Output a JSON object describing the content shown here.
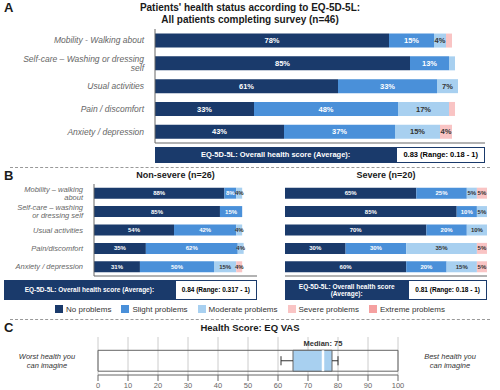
{
  "chart_data": [
    {
      "type": "bar",
      "orientation": "horizontal",
      "stacked": true,
      "panel": "A",
      "title": "Patients' health status according to EQ-5D-5L:\nAll patients completing survey (n=46)",
      "categories": [
        "Mobility - Walking about",
        "Self-care – Washing or dressing self",
        "Usual activities",
        "Pain / discomfort",
        "Anxiety / depression"
      ],
      "series": [
        {
          "name": "No problems",
          "color": "#1a3a6b",
          "values": [
            78,
            85,
            61,
            33,
            43
          ],
          "value_labels": [
            "78%",
            "85%",
            "61%",
            "33%",
            "43%"
          ]
        },
        {
          "name": "Slight problems",
          "color": "#4a90d9",
          "values": [
            15,
            13,
            33,
            48,
            37
          ],
          "value_labels": [
            "15%",
            "13%",
            "33%",
            "48%",
            "37%"
          ]
        },
        {
          "name": "Moderate problems",
          "color": "#a8d0f0",
          "values": [
            4,
            2,
            7,
            17,
            15
          ],
          "value_labels": [
            "4%",
            null,
            "7%",
            "17%",
            "15%"
          ]
        },
        {
          "name": "Severe problems",
          "color": "#f9c4c4",
          "values": [
            2,
            0,
            0,
            2,
            4
          ],
          "value_labels": [
            null,
            null,
            null,
            null,
            "4%"
          ]
        },
        {
          "name": "Extreme problems",
          "color": "#f5a0a0",
          "values": [
            0,
            0,
            0,
            0,
            0
          ],
          "value_labels": [
            null,
            null,
            null,
            null,
            null
          ]
        }
      ],
      "xlim": [
        0,
        110
      ],
      "data_labels": true,
      "tick_labels": "y",
      "annotations": [
        "EQ-5D-5L: Overall health score (Average):",
        "0.83 (Range: 0.18 - 1)"
      ]
    },
    {
      "type": "bar",
      "orientation": "horizontal",
      "stacked": true,
      "panel": "B",
      "title": "Non-severe (n=26)",
      "categories": [
        "Mobility – walking about",
        "Self-care – washing or dressing self",
        "Usual activities",
        "Pain/discomfort",
        "Anxiety / depression"
      ],
      "series": [
        {
          "name": "No problems",
          "color": "#1a3a6b",
          "values": [
            88,
            85,
            54,
            35,
            31
          ],
          "value_labels": [
            "88%",
            "85%",
            "54%",
            "35%",
            "31%"
          ]
        },
        {
          "name": "Slight problems",
          "color": "#4a90d9",
          "values": [
            8,
            15,
            42,
            62,
            50
          ],
          "value_labels": [
            "8%",
            "15%",
            "42%",
            "62%",
            "50%"
          ]
        },
        {
          "name": "Moderate problems",
          "color": "#a8d0f0",
          "values": [
            4,
            0,
            4,
            4,
            15
          ],
          "value_labels": [
            "4%",
            null,
            "4%",
            "4%",
            "15%"
          ]
        },
        {
          "name": "Severe problems",
          "color": "#f9c4c4",
          "values": [
            0,
            0,
            0,
            0,
            4
          ],
          "value_labels": [
            null,
            null,
            null,
            null,
            "4%"
          ]
        },
        {
          "name": "Extreme problems",
          "color": "#f5a0a0",
          "values": [
            0,
            0,
            0,
            0,
            0
          ],
          "value_labels": [
            null,
            null,
            null,
            null,
            null
          ]
        }
      ],
      "xlim": [
        0,
        110
      ],
      "data_labels": true,
      "tick_labels": "y",
      "legend": "bottom",
      "annotations": [
        "EQ-5D-5L: Overall health score (Average):",
        "0.84 (Range: 0.317 - 1)"
      ]
    },
    {
      "type": "bar",
      "orientation": "horizontal",
      "stacked": true,
      "title": "Severe (n=20)",
      "categories": [
        "Mobility – walking about",
        "Self-care – washing or dressing self",
        "Usual activities",
        "Pain/discomfort",
        "Anxiety / depression"
      ],
      "series": [
        {
          "name": "No problems",
          "color": "#1a3a6b",
          "values": [
            65,
            85,
            70,
            30,
            60
          ],
          "value_labels": [
            "65%",
            "85%",
            "70%",
            "30%",
            "60%"
          ]
        },
        {
          "name": "Slight problems",
          "color": "#4a90d9",
          "values": [
            25,
            10,
            20,
            30,
            20
          ],
          "value_labels": [
            "25%",
            "10%",
            "20%",
            "30%",
            "20%"
          ]
        },
        {
          "name": "Moderate problems",
          "color": "#a8d0f0",
          "values": [
            5,
            5,
            10,
            35,
            15
          ],
          "value_labels": [
            "5%",
            "5%",
            "10%",
            "35%",
            "15%"
          ]
        },
        {
          "name": "Severe problems",
          "color": "#f9c4c4",
          "values": [
            5,
            0,
            0,
            5,
            5
          ],
          "value_labels": [
            "5%",
            null,
            null,
            "5%",
            "5%"
          ]
        },
        {
          "name": "Extreme problems",
          "color": "#f5a0a0",
          "values": [
            0,
            0,
            0,
            0,
            0
          ],
          "value_labels": [
            null,
            null,
            null,
            null,
            null
          ]
        }
      ],
      "xlim": [
        0,
        100
      ],
      "data_labels": true,
      "tick_labels": false,
      "annotations": [
        "EQ-5D-5L: Overall health score (Average):",
        "0.81 (Range: 0.18 - 1)"
      ]
    },
    {
      "type": "box",
      "panel": "C",
      "title": "Health Score: EQ VAS",
      "min": 61,
      "q1": 65,
      "median": 75,
      "q3": 78,
      "max": 80,
      "median_label": "Median: 75",
      "color": "#a8d0f0",
      "xlim": [
        0,
        100
      ],
      "xticks": [
        0,
        10,
        20,
        30,
        40,
        50,
        60,
        70,
        80,
        90,
        100
      ],
      "grid": true,
      "tick_labels": "x",
      "annotations": [
        "Worst health you\ncan imagine",
        "Best health you\ncan imagine"
      ]
    }
  ]
}
